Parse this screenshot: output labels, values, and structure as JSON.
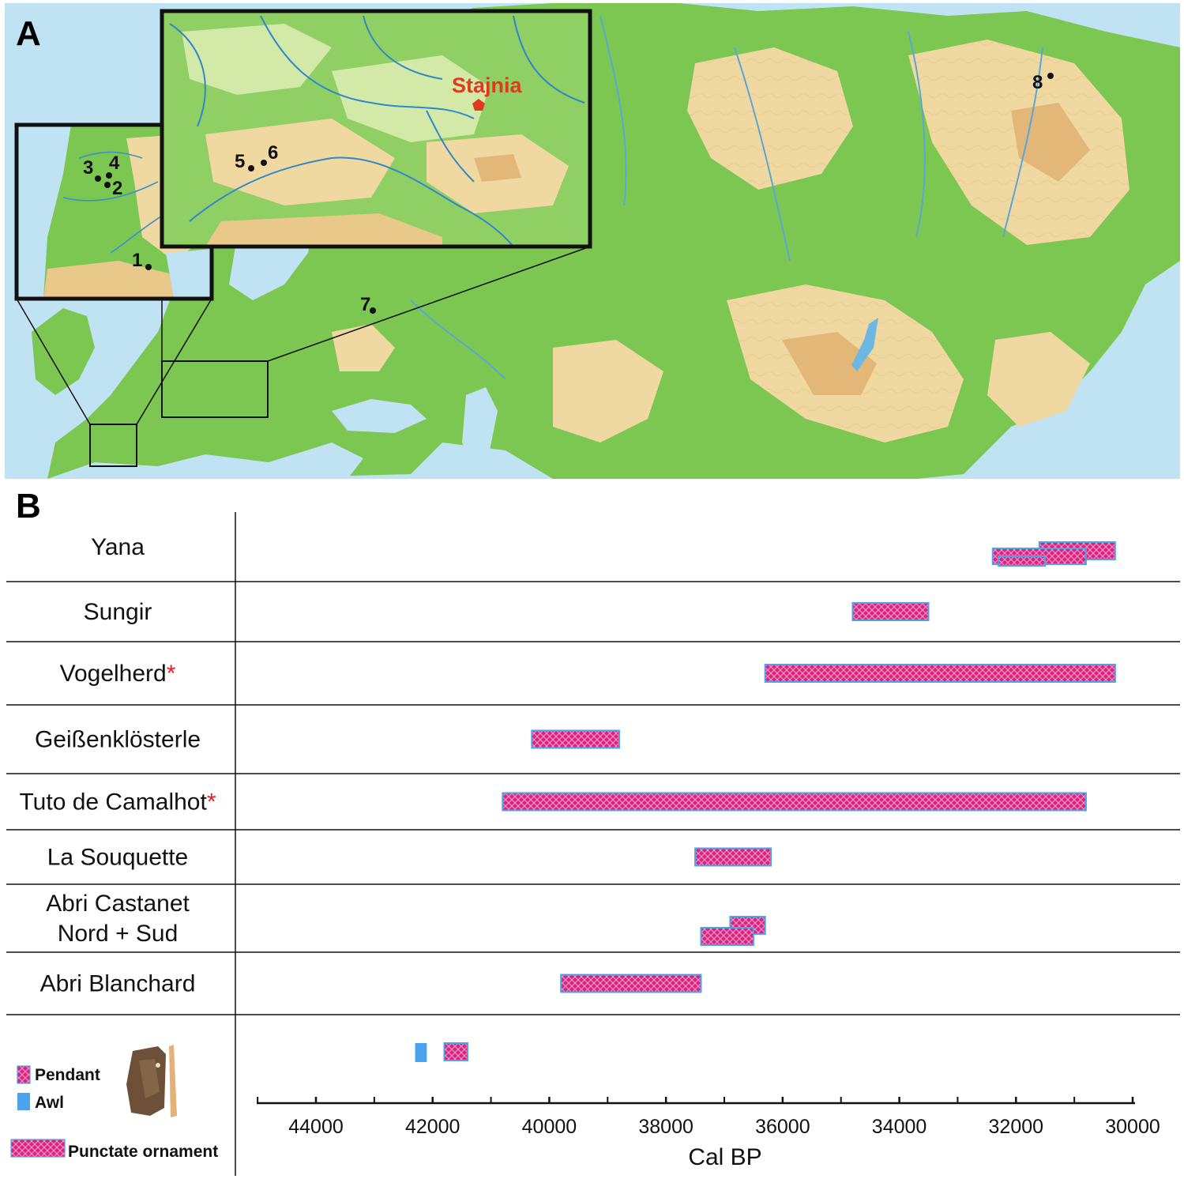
{
  "panel_a": {
    "letter": "A",
    "highlight_label": "Stajnia",
    "highlight_color": "#e03a1e",
    "site_numbers": [
      "1",
      "2",
      "3",
      "4",
      "5",
      "6",
      "7",
      "8"
    ]
  },
  "panel_b": {
    "letter": "B",
    "rows": [
      {
        "lines": [
          "Yana"
        ],
        "star": false
      },
      {
        "lines": [
          "Sungir"
        ],
        "star": false
      },
      {
        "lines": [
          "Vogelherd"
        ],
        "star": true
      },
      {
        "lines": [
          "Geißenklösterle"
        ],
        "star": false
      },
      {
        "lines": [
          "Tuto de Camalhot"
        ],
        "star": true
      },
      {
        "lines": [
          "La Souquette"
        ],
        "star": false
      },
      {
        "lines": [
          "Abri Castanet",
          "Nord + Sud"
        ],
        "star": false
      },
      {
        "lines": [
          "Abri Blanchard"
        ],
        "star": false
      }
    ],
    "star_symbol": "*",
    "legend": {
      "pendant": "Pendant",
      "awl": "Awl",
      "punctate": "Punctate ornament"
    }
  },
  "colors": {
    "punctate_fill": "#d8247e",
    "punctate_edge": "#4da3e8",
    "awl": "#4aa3ec",
    "star": "#e0202a",
    "map_water": "#bfe3f2",
    "map_green": "#7cc652",
    "map_tan": "#f0d9a0"
  },
  "chart_data": {
    "type": "bar",
    "orientation": "horizontal-range",
    "xlabel": "Cal BP",
    "xlim": [
      45000,
      30000
    ],
    "x_reversed": true,
    "xticks": [
      "44000",
      "42000",
      "40000",
      "38000",
      "36000",
      "34000",
      "32000",
      "30000"
    ],
    "series": [
      {
        "site": "Yana",
        "type": "punctate",
        "start": 31600,
        "end": 30300
      },
      {
        "site": "Yana",
        "type": "punctate",
        "start": 32400,
        "end": 30800
      },
      {
        "site": "Yana",
        "type": "punctate",
        "start": 32300,
        "end": 31500
      },
      {
        "site": "Sungir",
        "type": "punctate",
        "start": 34800,
        "end": 33500
      },
      {
        "site": "Vogelherd",
        "type": "punctate",
        "start": 36300,
        "end": 30300
      },
      {
        "site": "Geißenklösterle",
        "type": "punctate",
        "start": 40300,
        "end": 38800
      },
      {
        "site": "Tuto de Camalhot",
        "type": "punctate",
        "start": 40800,
        "end": 30800
      },
      {
        "site": "La Souquette",
        "type": "punctate",
        "start": 37500,
        "end": 36200
      },
      {
        "site": "Abri Castanet Nord + Sud",
        "type": "punctate",
        "start": 36900,
        "end": 36300
      },
      {
        "site": "Abri Castanet Nord + Sud",
        "type": "punctate",
        "start": 37400,
        "end": 36500
      },
      {
        "site": "Abri Blanchard",
        "type": "punctate",
        "start": 39800,
        "end": 37400
      },
      {
        "site": "Stajnia",
        "type": "awl",
        "start": 42300,
        "end": 42100
      },
      {
        "site": "Stajnia",
        "type": "pendant",
        "start": 41800,
        "end": 41400
      }
    ]
  }
}
